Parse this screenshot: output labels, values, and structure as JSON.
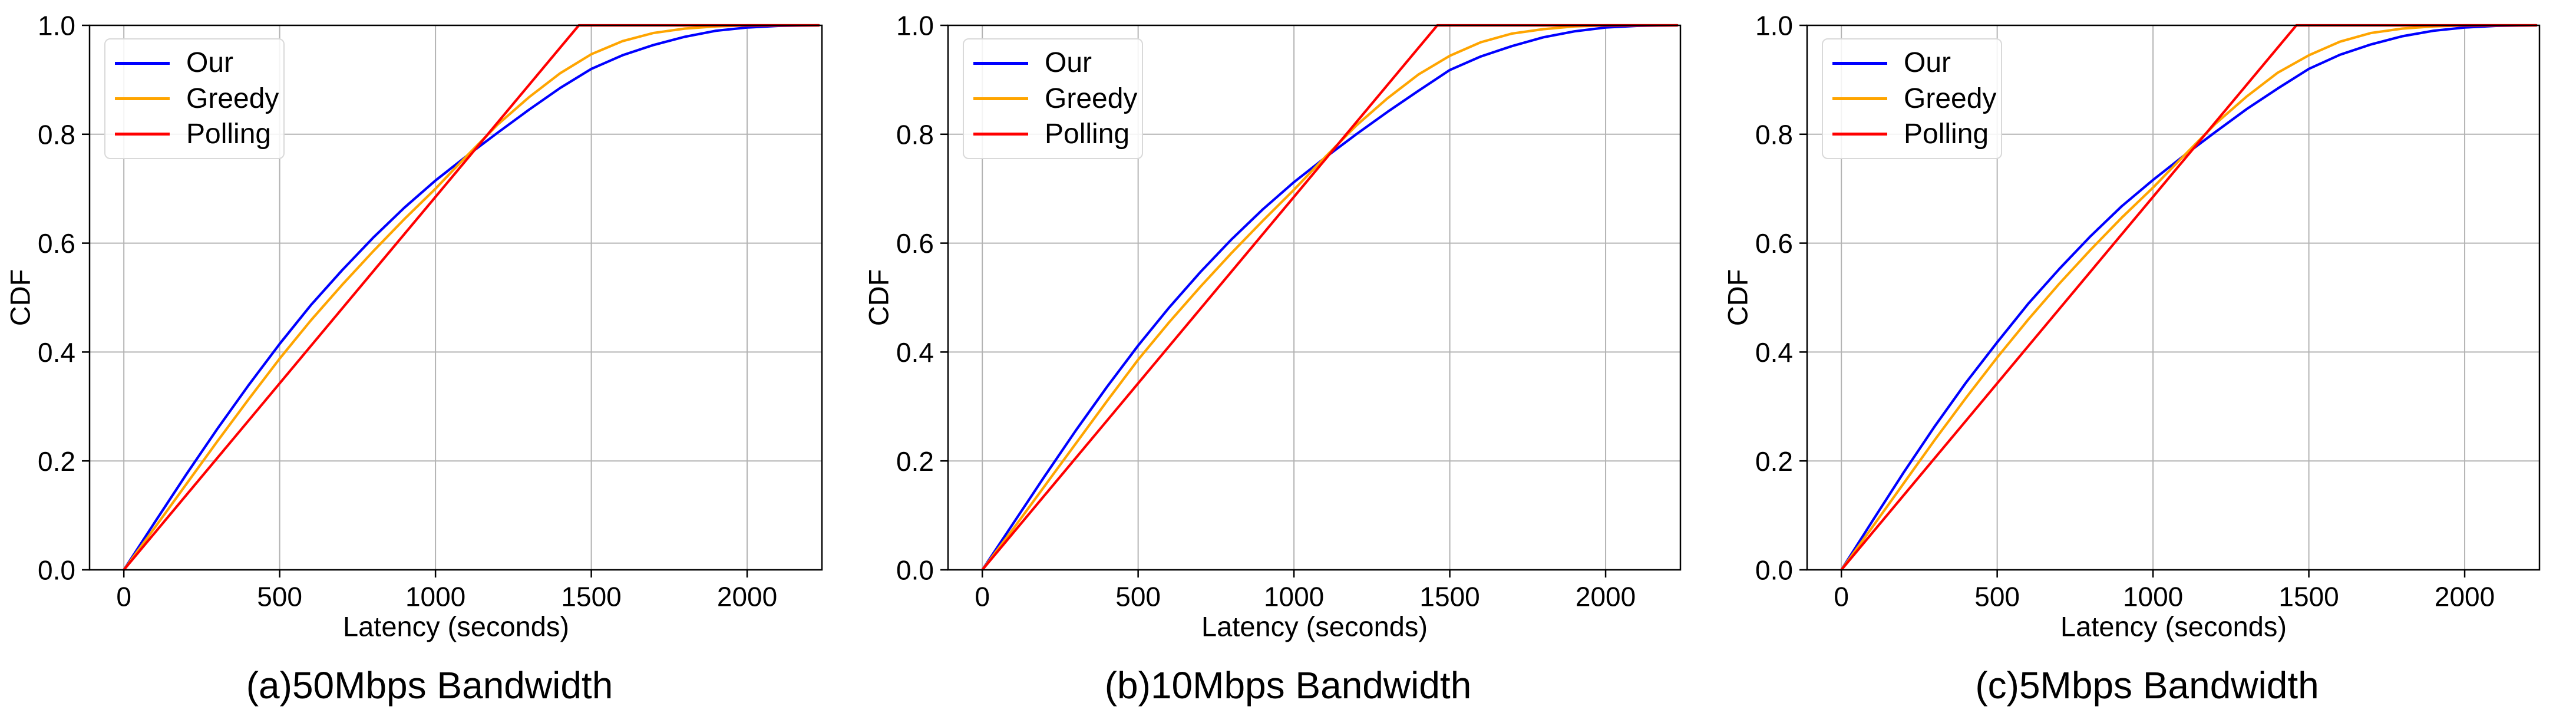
{
  "figure_title": "",
  "style": {
    "background": "#ffffff",
    "axis_color": "#000000",
    "grid_color": "#b3b3b3",
    "tick_label_color": "#000000",
    "legend_border_color": "#d9d9d9",
    "legend_background": "#ffffff"
  },
  "chart_data": [
    {
      "type": "line",
      "caption": "(a)50Mbps Bandwidth",
      "xlabel": "Latency (seconds)",
      "ylabel": "CDF",
      "xlim": [
        -110,
        2240
      ],
      "ylim": [
        0,
        1
      ],
      "grid": true,
      "xticks": [
        0,
        500,
        1000,
        1500,
        2000
      ],
      "xtick_labels": [
        "0",
        "500",
        "1000",
        "1500",
        "2000"
      ],
      "yticks": [
        0.0,
        0.2,
        0.4,
        0.6,
        0.8,
        1.0
      ],
      "ytick_labels": [
        "0.0",
        "0.2",
        "0.4",
        "0.6",
        "0.8",
        "1.0"
      ],
      "legend": {
        "position": "upper left",
        "entries": [
          "Our",
          "Greedy",
          "Polling"
        ]
      },
      "series": [
        {
          "name": "Our",
          "color": "#0000ff",
          "points": [
            [
              0,
              0
            ],
            [
              100,
              0.088
            ],
            [
              200,
              0.175
            ],
            [
              300,
              0.259
            ],
            [
              400,
              0.339
            ],
            [
              500,
              0.415
            ],
            [
              600,
              0.486
            ],
            [
              700,
              0.55
            ],
            [
              800,
              0.61
            ],
            [
              900,
              0.665
            ],
            [
              1000,
              0.715
            ],
            [
              1100,
              0.76
            ],
            [
              1200,
              0.803
            ],
            [
              1300,
              0.845
            ],
            [
              1400,
              0.885
            ],
            [
              1500,
              0.92
            ],
            [
              1600,
              0.945
            ],
            [
              1700,
              0.964
            ],
            [
              1800,
              0.979
            ],
            [
              1900,
              0.99
            ],
            [
              2000,
              0.996
            ],
            [
              2100,
              0.999
            ],
            [
              2230,
              1.0
            ]
          ]
        },
        {
          "name": "Greedy",
          "color": "#ffa500",
          "points": [
            [
              0,
              0
            ],
            [
              100,
              0.078
            ],
            [
              200,
              0.157
            ],
            [
              300,
              0.236
            ],
            [
              400,
              0.313
            ],
            [
              500,
              0.388
            ],
            [
              600,
              0.458
            ],
            [
              700,
              0.523
            ],
            [
              800,
              0.585
            ],
            [
              900,
              0.644
            ],
            [
              1000,
              0.7
            ],
            [
              1100,
              0.76
            ],
            [
              1200,
              0.818
            ],
            [
              1300,
              0.868
            ],
            [
              1400,
              0.912
            ],
            [
              1500,
              0.947
            ],
            [
              1600,
              0.971
            ],
            [
              1700,
              0.986
            ],
            [
              1800,
              0.994
            ],
            [
              1900,
              0.998
            ],
            [
              2000,
              1.0
            ],
            [
              2230,
              1.0
            ]
          ]
        },
        {
          "name": "Polling",
          "color": "#ff0000",
          "points": [
            [
              0,
              0
            ],
            [
              200,
              0.137
            ],
            [
              400,
              0.274
            ],
            [
              600,
              0.411
            ],
            [
              800,
              0.548
            ],
            [
              1000,
              0.685
            ],
            [
              1200,
              0.822
            ],
            [
              1400,
              0.959
            ],
            [
              1460,
              1.0
            ],
            [
              2230,
              1.0
            ]
          ]
        }
      ]
    },
    {
      "type": "line",
      "caption": "(b)10Mbps Bandwidth",
      "xlabel": "Latency (seconds)",
      "ylabel": "CDF",
      "xlim": [
        -110,
        2240
      ],
      "ylim": [
        0,
        1
      ],
      "grid": true,
      "xticks": [
        0,
        500,
        1000,
        1500,
        2000
      ],
      "xtick_labels": [
        "0",
        "500",
        "1000",
        "1500",
        "2000"
      ],
      "yticks": [
        0.0,
        0.2,
        0.4,
        0.6,
        0.8,
        1.0
      ],
      "ytick_labels": [
        "0.0",
        "0.2",
        "0.4",
        "0.6",
        "0.8",
        "1.0"
      ],
      "legend": {
        "position": "upper left",
        "entries": [
          "Our",
          "Greedy",
          "Polling"
        ]
      },
      "series": [
        {
          "name": "Our",
          "color": "#0000ff",
          "points": [
            [
              0,
              0
            ],
            [
              100,
              0.086
            ],
            [
              200,
              0.172
            ],
            [
              300,
              0.256
            ],
            [
              400,
              0.336
            ],
            [
              500,
              0.412
            ],
            [
              600,
              0.482
            ],
            [
              700,
              0.547
            ],
            [
              800,
              0.607
            ],
            [
              900,
              0.662
            ],
            [
              1000,
              0.712
            ],
            [
              1100,
              0.757
            ],
            [
              1200,
              0.8
            ],
            [
              1300,
              0.841
            ],
            [
              1400,
              0.88
            ],
            [
              1500,
              0.918
            ],
            [
              1600,
              0.943
            ],
            [
              1700,
              0.962
            ],
            [
              1800,
              0.978
            ],
            [
              1900,
              0.989
            ],
            [
              2000,
              0.996
            ],
            [
              2100,
              0.999
            ],
            [
              2230,
              1.0
            ]
          ]
        },
        {
          "name": "Greedy",
          "color": "#ffa500",
          "points": [
            [
              0,
              0
            ],
            [
              100,
              0.076
            ],
            [
              200,
              0.154
            ],
            [
              300,
              0.232
            ],
            [
              400,
              0.31
            ],
            [
              500,
              0.386
            ],
            [
              600,
              0.455
            ],
            [
              700,
              0.52
            ],
            [
              800,
              0.582
            ],
            [
              900,
              0.641
            ],
            [
              1000,
              0.698
            ],
            [
              1100,
              0.758
            ],
            [
              1200,
              0.816
            ],
            [
              1300,
              0.866
            ],
            [
              1400,
              0.91
            ],
            [
              1500,
              0.944
            ],
            [
              1600,
              0.969
            ],
            [
              1700,
              0.985
            ],
            [
              1800,
              0.993
            ],
            [
              1900,
              0.998
            ],
            [
              2000,
              1.0
            ],
            [
              2230,
              1.0
            ]
          ]
        },
        {
          "name": "Polling",
          "color": "#ff0000",
          "points": [
            [
              0,
              0
            ],
            [
              200,
              0.137
            ],
            [
              400,
              0.274
            ],
            [
              600,
              0.411
            ],
            [
              800,
              0.548
            ],
            [
              1000,
              0.685
            ],
            [
              1200,
              0.822
            ],
            [
              1400,
              0.959
            ],
            [
              1460,
              1.0
            ],
            [
              2230,
              1.0
            ]
          ]
        }
      ]
    },
    {
      "type": "line",
      "caption": "(c)5Mbps Bandwidth",
      "xlabel": "Latency (seconds)",
      "ylabel": "CDF",
      "xlim": [
        -110,
        2240
      ],
      "ylim": [
        0,
        1
      ],
      "grid": true,
      "xticks": [
        0,
        500,
        1000,
        1500,
        2000
      ],
      "xtick_labels": [
        "0",
        "500",
        "1000",
        "1500",
        "2000"
      ],
      "yticks": [
        0.0,
        0.2,
        0.4,
        0.6,
        0.8,
        1.0
      ],
      "ytick_labels": [
        "0.0",
        "0.2",
        "0.4",
        "0.6",
        "0.8",
        "1.0"
      ],
      "legend": {
        "position": "upper left",
        "entries": [
          "Our",
          "Greedy",
          "Polling"
        ]
      },
      "series": [
        {
          "name": "Our",
          "color": "#0000ff",
          "points": [
            [
              0,
              0
            ],
            [
              100,
              0.09
            ],
            [
              200,
              0.179
            ],
            [
              300,
              0.264
            ],
            [
              400,
              0.344
            ],
            [
              500,
              0.418
            ],
            [
              600,
              0.489
            ],
            [
              700,
              0.553
            ],
            [
              800,
              0.613
            ],
            [
              900,
              0.668
            ],
            [
              1000,
              0.716
            ],
            [
              1100,
              0.761
            ],
            [
              1200,
              0.804
            ],
            [
              1300,
              0.846
            ],
            [
              1400,
              0.884
            ],
            [
              1500,
              0.92
            ],
            [
              1600,
              0.946
            ],
            [
              1700,
              0.965
            ],
            [
              1800,
              0.98
            ],
            [
              1900,
              0.99
            ],
            [
              2000,
              0.996
            ],
            [
              2100,
              0.999
            ],
            [
              2230,
              1.0
            ]
          ]
        },
        {
          "name": "Greedy",
          "color": "#ffa500",
          "points": [
            [
              0,
              0
            ],
            [
              100,
              0.079
            ],
            [
              200,
              0.159
            ],
            [
              300,
              0.239
            ],
            [
              400,
              0.316
            ],
            [
              500,
              0.39
            ],
            [
              600,
              0.46
            ],
            [
              700,
              0.526
            ],
            [
              800,
              0.588
            ],
            [
              900,
              0.647
            ],
            [
              1000,
              0.702
            ],
            [
              1100,
              0.761
            ],
            [
              1200,
              0.819
            ],
            [
              1300,
              0.869
            ],
            [
              1400,
              0.913
            ],
            [
              1500,
              0.945
            ],
            [
              1600,
              0.97
            ],
            [
              1700,
              0.986
            ],
            [
              1800,
              0.994
            ],
            [
              1900,
              0.998
            ],
            [
              2000,
              1.0
            ],
            [
              2230,
              1.0
            ]
          ]
        },
        {
          "name": "Polling",
          "color": "#ff0000",
          "points": [
            [
              0,
              0
            ],
            [
              200,
              0.137
            ],
            [
              400,
              0.274
            ],
            [
              600,
              0.411
            ],
            [
              800,
              0.548
            ],
            [
              1000,
              0.685
            ],
            [
              1200,
              0.822
            ],
            [
              1400,
              0.959
            ],
            [
              1460,
              1.0
            ],
            [
              2230,
              1.0
            ]
          ]
        }
      ]
    }
  ]
}
